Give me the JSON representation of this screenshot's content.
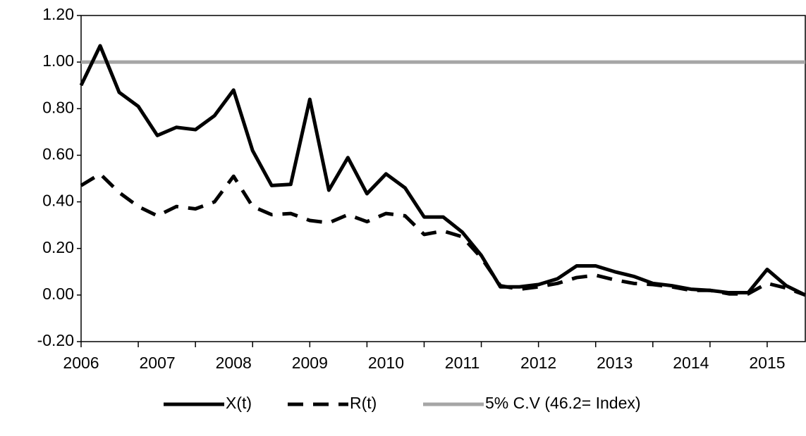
{
  "chart_data": {
    "type": "line",
    "categories": [
      "2006",
      null,
      null,
      null,
      "2007",
      null,
      null,
      null,
      "2008",
      null,
      null,
      null,
      "2009",
      null,
      null,
      null,
      "2010",
      null,
      null,
      null,
      "2011",
      null,
      null,
      null,
      "2012",
      null,
      null,
      null,
      "2013",
      null,
      null,
      null,
      "2014",
      null,
      null,
      null,
      "2015",
      null,
      null
    ],
    "series": [
      {
        "name": "X(t)",
        "color": "#000000",
        "dash": "solid",
        "values": [
          0.9,
          1.07,
          0.87,
          0.81,
          0.685,
          0.72,
          0.71,
          0.77,
          0.88,
          0.62,
          0.47,
          0.475,
          0.84,
          0.45,
          0.59,
          0.435,
          0.52,
          0.46,
          0.335,
          0.335,
          0.27,
          0.17,
          0.035,
          0.035,
          0.045,
          0.07,
          0.125,
          0.125,
          0.1,
          0.08,
          0.05,
          0.04,
          0.025,
          0.02,
          0.01,
          0.01,
          0.11,
          0.04,
          0.0
        ]
      },
      {
        "name": "R(t)",
        "color": "#000000",
        "dash": "dashed",
        "values": [
          0.47,
          0.52,
          0.44,
          0.38,
          0.34,
          0.38,
          0.37,
          0.4,
          0.51,
          0.38,
          0.345,
          0.35,
          0.32,
          0.31,
          0.345,
          0.315,
          0.35,
          0.34,
          0.26,
          0.275,
          0.25,
          0.16,
          0.04,
          0.025,
          0.035,
          0.05,
          0.075,
          0.085,
          0.065,
          0.05,
          0.045,
          0.035,
          0.02,
          0.02,
          0.005,
          0.005,
          0.05,
          0.03,
          0.0
        ]
      },
      {
        "name": "5% C.V (46.2= Index)",
        "color": "#a6a6a6",
        "dash": "solid",
        "values": [
          1,
          1,
          1,
          1,
          1,
          1,
          1,
          1,
          1,
          1,
          1,
          1,
          1,
          1,
          1,
          1,
          1,
          1,
          1,
          1,
          1,
          1,
          1,
          1,
          1,
          1,
          1,
          1,
          1,
          1,
          1,
          1,
          1,
          1,
          1,
          1,
          1,
          1,
          1
        ]
      }
    ],
    "ylim": [
      -0.2,
      1.2
    ],
    "yticks": [
      {
        "value": -0.2,
        "label": "-0.20"
      },
      {
        "value": 0,
        "label": "0.00"
      },
      {
        "value": 0.2,
        "label": "0.20"
      },
      {
        "value": 0.4,
        "label": "0.40"
      },
      {
        "value": 0.6,
        "label": "0.60"
      },
      {
        "value": 0.8,
        "label": "0.80"
      },
      {
        "value": 1,
        "label": "1.00"
      },
      {
        "value": 1.2,
        "label": "1.20"
      }
    ],
    "legend": "bottom"
  }
}
